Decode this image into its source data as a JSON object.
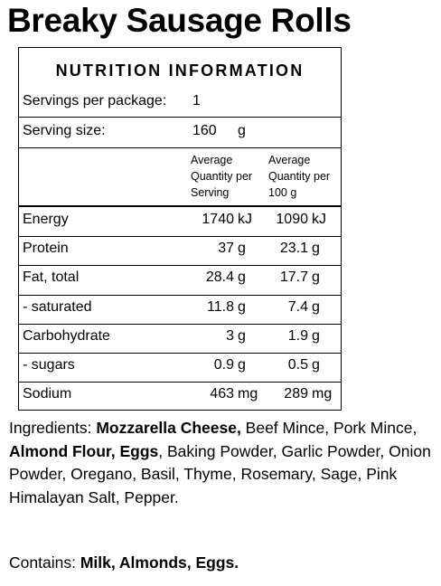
{
  "title": "Breaky Sausage Rolls",
  "panel": {
    "heading": "NUTRITION INFORMATION",
    "servings_label": "Servings per package:",
    "servings_value": "1",
    "serving_size_label": "Serving size:",
    "serving_size_value": "160",
    "serving_size_unit": "g",
    "column_headers": [
      [
        "Average",
        "Quantity per",
        "Serving"
      ],
      [
        "Average",
        "Quantity per",
        "100 g"
      ]
    ],
    "rows": [
      {
        "name": "Energy",
        "per_serving": "1740",
        "per_serving_unit": "kJ",
        "per_100g": "1090",
        "per_100g_unit": "kJ"
      },
      {
        "name": "Protein",
        "per_serving": "37",
        "per_serving_unit": "g",
        "per_100g": "23.1",
        "per_100g_unit": "g"
      },
      {
        "name": "Fat, total",
        "per_serving": "28.4",
        "per_serving_unit": "g",
        "per_100g": "17.7",
        "per_100g_unit": "g"
      },
      {
        "name": "- saturated",
        "per_serving": "11.8",
        "per_serving_unit": "g",
        "per_100g": "7.4",
        "per_100g_unit": "g"
      },
      {
        "name": "Carbohydrate",
        "per_serving": "3",
        "per_serving_unit": "g",
        "per_100g": "1.9",
        "per_100g_unit": "g"
      },
      {
        "name": "- sugars",
        "per_serving": "0.9",
        "per_serving_unit": "g",
        "per_100g": "0.5",
        "per_100g_unit": "g"
      },
      {
        "name": "Sodium",
        "per_serving": "463",
        "per_serving_unit": "mg",
        "per_100g": "289",
        "per_100g_unit": "mg"
      }
    ]
  },
  "ingredients": {
    "label": "Ingredients:",
    "parts": [
      {
        "text": "Mozzarella Cheese,",
        "bold": true
      },
      {
        "text": " Beef Mince, Pork Mince, ",
        "bold": false
      },
      {
        "text": "Almond Flour, Eggs",
        "bold": true
      },
      {
        "text": ", Baking Powder, Garlic Powder, Onion Powder, Oregano, Basil, Thyme, Rosemary, Sage, Pink Himalayan Salt, Pepper.",
        "bold": false
      }
    ]
  },
  "contains": {
    "label": "Contains:",
    "allergens": "Milk, Almonds, Eggs."
  }
}
